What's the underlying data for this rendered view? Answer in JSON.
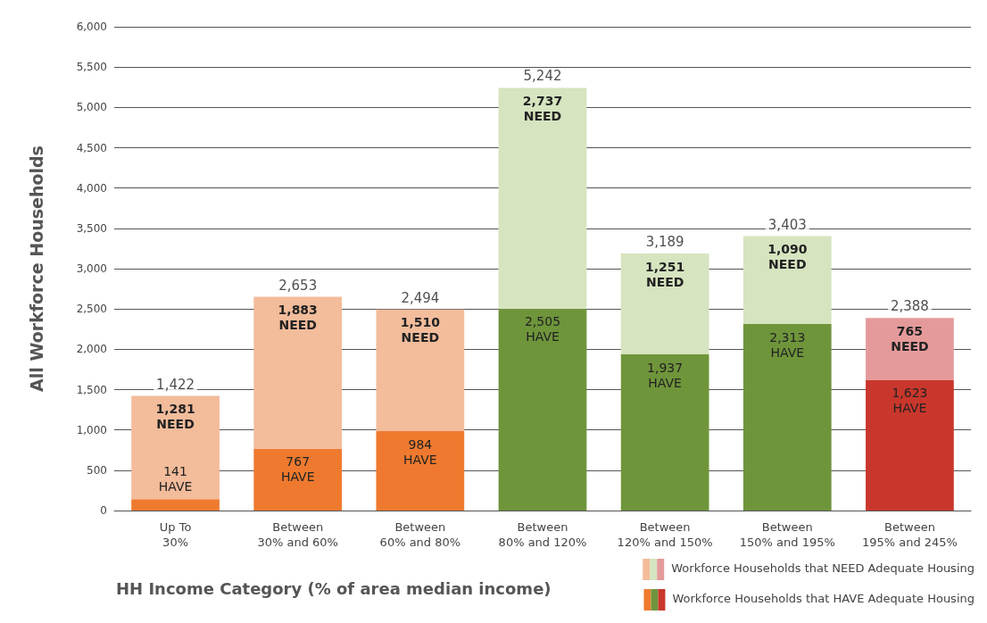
{
  "chart_data": {
    "type": "bar",
    "stacked": true,
    "xlabel": "HH Income Category (% of area median income)",
    "ylabel": "All Workforce Households",
    "categories": [
      "Up To\n30%",
      "Between\n30% and 60%",
      "Between\n60% and 80%",
      "Between\n80% and 120%",
      "Between\n120% and 150%",
      "Between\n150% and 195%",
      "Between\n195% and 245%"
    ],
    "series": [
      {
        "name": "Workforce Households that HAVE Adequate Housing",
        "values": [
          141,
          767,
          984,
          2505,
          1937,
          2313,
          1623
        ],
        "colors": [
          "#ef7a2f",
          "#ef7a2f",
          "#ef7a2f",
          "#6f953b",
          "#6f953b",
          "#6f953b",
          "#c9372c"
        ],
        "value_labels": [
          "141\nHAVE",
          "767\nHAVE",
          "984\nHAVE",
          "2,505\nHAVE",
          "1,937\nHAVE",
          "2,313\nHAVE",
          "1,623\nHAVE"
        ]
      },
      {
        "name": "Workforce Households that NEED Adequate Housing",
        "values": [
          1281,
          1883,
          1510,
          2737,
          1251,
          1090,
          765
        ],
        "colors": [
          "#f3bc9b",
          "#f3bc9b",
          "#f3bc9b",
          "#d6e4bf",
          "#d6e4bf",
          "#d6e4bf",
          "#e59a9a"
        ],
        "value_labels": [
          "1,281\nNEED",
          "1,883\nNEED",
          "1,510\nNEED",
          "2,737\nNEED",
          "1,251\nNEED",
          "1,090\nNEED",
          "765\nNEED"
        ]
      }
    ],
    "annotations": [
      {
        "text": "1,422",
        "x": "Up To\n30%",
        "y": 1422
      },
      {
        "text": "2,653",
        "x": "Between\n30% and 60%",
        "y": 2650
      },
      {
        "text": "2,494",
        "x": "Between\n60% and 80%",
        "y": 2494
      },
      {
        "text": "5,242",
        "x": "Between\n80% and 120%",
        "y": 5242
      },
      {
        "text": "3,189",
        "x": "Between\n120% and 150%",
        "y": 3188
      },
      {
        "text": "3,403",
        "x": "Between\n150% and 195%",
        "y": 3403
      },
      {
        "text": "2,388",
        "x": "Between\n195% and 245%",
        "y": 2388
      }
    ],
    "ylim": [
      0,
      6000
    ],
    "yticks": [
      0,
      500,
      {
        "value": 1000,
        "label": "1,000"
      },
      {
        "value": 1500,
        "label": "1,500"
      },
      {
        "value": 2000,
        "label": "2,000"
      },
      {
        "value": 2500,
        "label": "2,500"
      },
      {
        "value": 3000,
        "label": "3,000"
      },
      {
        "value": 3500,
        "label": "3,500"
      },
      {
        "value": 4000,
        "label": "4,000"
      },
      {
        "value": 4500,
        "label": "4,500"
      },
      {
        "value": 5000,
        "label": "5,000"
      },
      {
        "value": 5500,
        "label": "5,500"
      },
      {
        "value": 6000,
        "label": "6,000"
      }
    ],
    "grid": "y",
    "legend": "bottom right"
  }
}
